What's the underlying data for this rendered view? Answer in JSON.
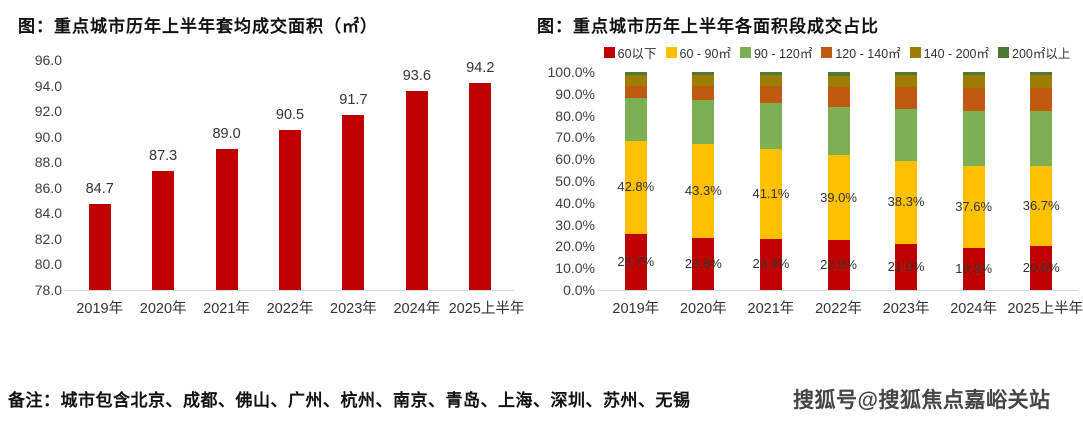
{
  "note": "备注：城市包含北京、成都、佛山、广州、杭州、南京、青岛、上海、深圳、苏州、无锡",
  "watermark": "搜狐号@搜狐焦点嘉峪关站",
  "chart_data": [
    {
      "type": "bar",
      "title": "图：重点城市历年上半年套均成交面积（㎡）",
      "categories": [
        "2019年",
        "2020年",
        "2021年",
        "2022年",
        "2023年",
        "2024年",
        "2025上半年"
      ],
      "values": [
        84.7,
        87.3,
        89.0,
        90.5,
        91.7,
        93.6,
        94.2
      ],
      "data_labels": [
        "84.7",
        "87.3",
        "89.0",
        "90.5",
        "91.7",
        "93.6",
        "94.2"
      ],
      "bar_color": "#c00000",
      "ylim": [
        78.0,
        96.0
      ],
      "ytick_labels": [
        "96.0",
        "94.0",
        "92.0",
        "90.0",
        "88.0",
        "86.0",
        "84.0",
        "82.0",
        "80.0",
        "78.0"
      ],
      "grid": false,
      "legend_position": "none"
    },
    {
      "type": "bar",
      "stacked": true,
      "title": "图：重点城市历年上半年各面积段成交占比",
      "categories": [
        "2019年",
        "2020年",
        "2021年",
        "2022年",
        "2023年",
        "2024年",
        "2025上半年"
      ],
      "series": [
        {
          "name": "60以下",
          "color": "#c00000",
          "values": [
            25.7,
            23.8,
            23.4,
            22.8,
            21.0,
            19.3,
            20.0
          ],
          "labels_shown": true
        },
        {
          "name": "60 - 90㎡",
          "color": "#ffc000",
          "values": [
            42.8,
            43.3,
            41.1,
            39.0,
            38.3,
            37.6,
            36.7
          ],
          "labels_shown": true
        },
        {
          "name": "90 - 120㎡",
          "color": "#7cb053",
          "values": [
            19.5,
            20.0,
            21.5,
            22.2,
            23.7,
            25.1,
            25.3
          ],
          "labels_shown": false
        },
        {
          "name": "120 - 140㎡",
          "color": "#c05a11",
          "values": [
            5.5,
            6.4,
            7.5,
            9.0,
            10.0,
            10.5,
            10.5
          ],
          "labels_shown": false
        },
        {
          "name": "140 - 200㎡",
          "color": "#9e7d05",
          "values": [
            5.0,
            5.0,
            5.0,
            5.0,
            5.5,
            6.0,
            6.0
          ],
          "labels_shown": false
        },
        {
          "name": "200㎡以上",
          "color": "#4e7b31",
          "values": [
            1.5,
            1.5,
            1.5,
            2.0,
            1.5,
            1.5,
            1.5
          ],
          "labels_shown": false
        }
      ],
      "ylim": [
        0,
        100
      ],
      "ytick_labels": [
        "100.0%",
        "90.0%",
        "80.0%",
        "70.0%",
        "60.0%",
        "50.0%",
        "40.0%",
        "30.0%",
        "20.0%",
        "10.0%",
        "0.0%"
      ],
      "grid": false,
      "legend_position": "top"
    }
  ]
}
